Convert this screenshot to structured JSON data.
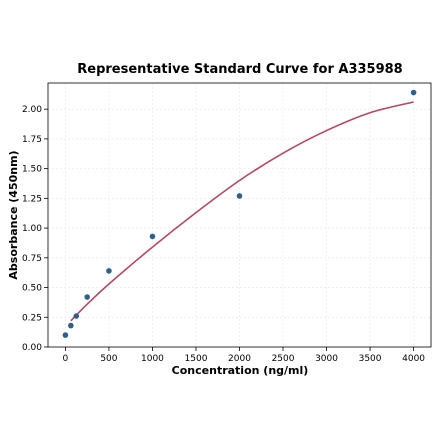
{
  "chart_data": {
    "type": "scatter",
    "title": "Representative Standard Curve for A335988",
    "xlabel": "Concentration (ng/ml)",
    "ylabel": "Absorbance (450nm)",
    "xlim": [
      -200,
      4200
    ],
    "ylim": [
      0,
      2.22
    ],
    "xticks": [
      0,
      500,
      1000,
      1500,
      2000,
      2500,
      3000,
      3500,
      4000
    ],
    "xtick_labels": [
      "0",
      "500",
      "1000",
      "1500",
      "2000",
      "2500",
      "3000",
      "3500",
      "4000"
    ],
    "yticks": [
      0,
      0.25,
      0.5,
      0.75,
      1.0,
      1.25,
      1.5,
      1.75,
      2.0
    ],
    "ytick_labels": [
      "0.00",
      "0.25",
      "0.50",
      "0.75",
      "1.00",
      "1.25",
      "1.50",
      "1.75",
      "2.00"
    ],
    "grid": true,
    "series": [
      {
        "kind": "points",
        "color": "#2f5f8f",
        "x": [
          0,
          62.5,
          125,
          250,
          500,
          1000,
          2000,
          4000
        ],
        "y": [
          0.1,
          0.18,
          0.26,
          0.42,
          0.64,
          0.93,
          1.27,
          2.14
        ]
      },
      {
        "kind": "fit-curve",
        "color": "#b5485f",
        "x": [
          62.5,
          250,
          500,
          1000,
          1500,
          2000,
          2500,
          3000,
          3500,
          4000
        ],
        "y": [
          0.22,
          0.36,
          0.53,
          0.84,
          1.13,
          1.4,
          1.63,
          1.82,
          1.97,
          2.06
        ]
      }
    ]
  }
}
